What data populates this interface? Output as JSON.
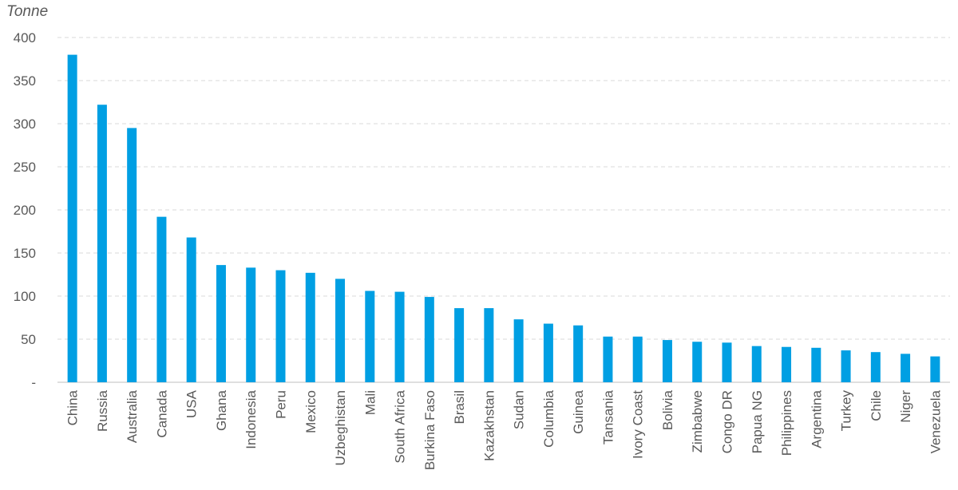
{
  "chart_data": {
    "type": "bar",
    "title": "",
    "unit_label": "Tonne",
    "xlabel": "",
    "ylabel": "Tonne",
    "ylim": [
      0,
      400
    ],
    "y_ticks": [
      {
        "value": 0,
        "label": "-"
      },
      {
        "value": 50,
        "label": "50"
      },
      {
        "value": 100,
        "label": "100"
      },
      {
        "value": 150,
        "label": "150"
      },
      {
        "value": 200,
        "label": "200"
      },
      {
        "value": 250,
        "label": "250"
      },
      {
        "value": 300,
        "label": "300"
      },
      {
        "value": 350,
        "label": "350"
      },
      {
        "value": 400,
        "label": "400"
      }
    ],
    "grid": true,
    "bar_color": "#009fe3",
    "categories": [
      "China",
      "Russia",
      "Australia",
      "Canada",
      "USA",
      "Ghana",
      "Indonesia",
      "Peru",
      "Mexico",
      "Uzbeghistan",
      "Mali",
      "South Africa",
      "Burkina Faso",
      "Brasil",
      "Kazakhstan",
      "Sudan",
      "Columbia",
      "Guinea",
      "Tansania",
      "Ivory Coast",
      "Bolivia",
      "Zimbabwe",
      "Congo DR",
      "Papua NG",
      "Philippines",
      "Argentina",
      "Turkey",
      "Chile",
      "Niger",
      "Venezuela"
    ],
    "values": [
      380,
      322,
      295,
      192,
      168,
      136,
      133,
      130,
      127,
      120,
      106,
      105,
      99,
      86,
      86,
      73,
      68,
      66,
      53,
      53,
      49,
      47,
      46,
      42,
      41,
      40,
      37,
      35,
      33,
      30
    ]
  }
}
